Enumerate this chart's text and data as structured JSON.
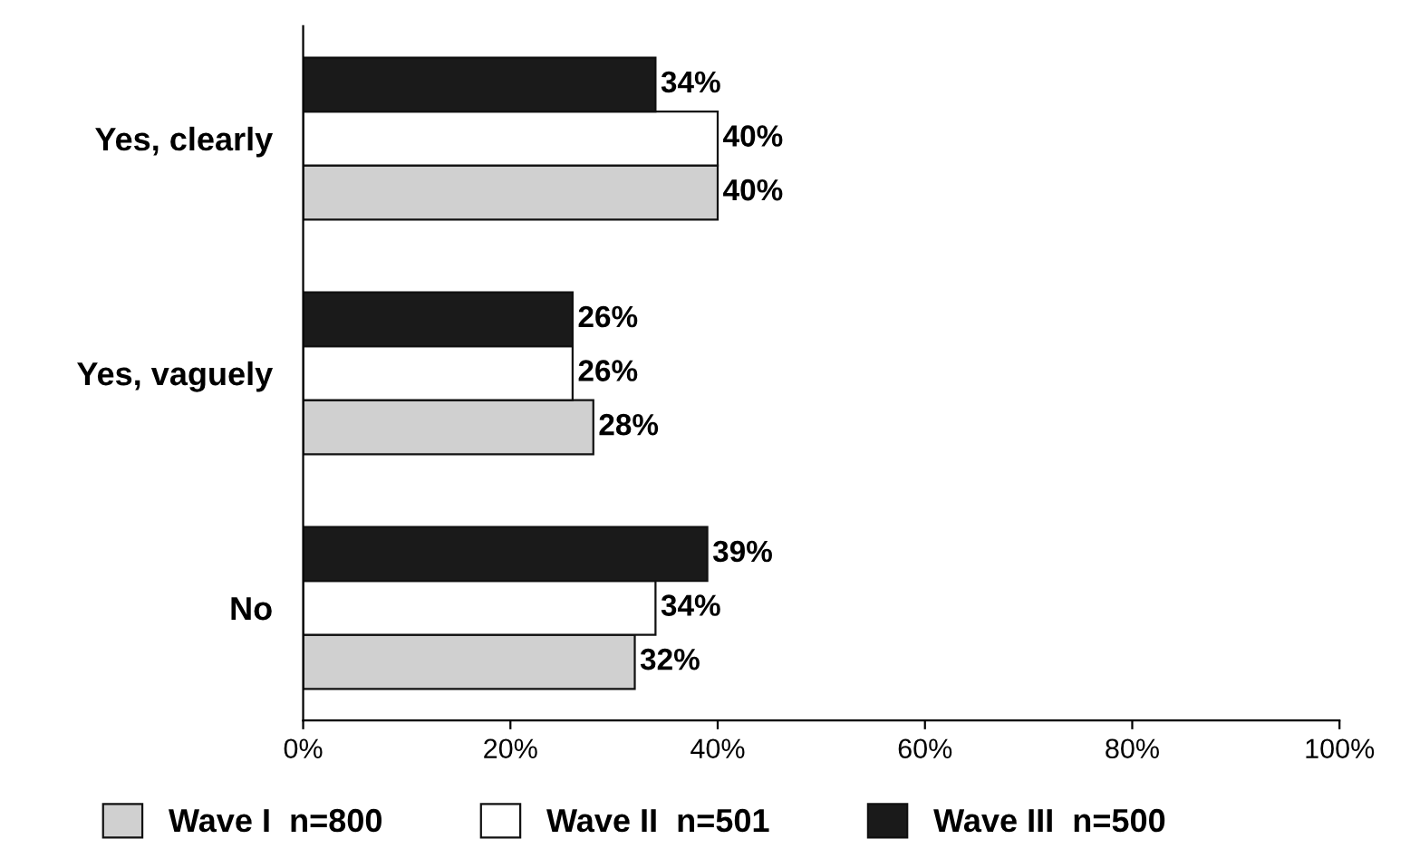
{
  "chart_data": {
    "type": "bar",
    "orientation": "horizontal",
    "categories": [
      "Yes, clearly",
      "Yes, vaguely",
      "No"
    ],
    "series": [
      {
        "name": "Wave I  n=800",
        "color": "#d0d0d0",
        "values": [
          40,
          28,
          32
        ],
        "value_labels": [
          "40%",
          "28%",
          "32%"
        ]
      },
      {
        "name": "Wave II  n=501",
        "color": "#ffffff",
        "values": [
          40,
          26,
          34
        ],
        "value_labels": [
          "40%",
          "26%",
          "34%"
        ]
      },
      {
        "name": "Wave III  n=500",
        "color": "#1a1a1a",
        "values": [
          34,
          26,
          39
        ],
        "value_labels": [
          "34%",
          "26%",
          "39%"
        ]
      }
    ],
    "xlim": [
      0,
      100
    ],
    "xticks": [
      {
        "value": 0,
        "label": "0%"
      },
      {
        "value": 20,
        "label": "20%"
      },
      {
        "value": 40,
        "label": "40%"
      },
      {
        "value": 60,
        "label": "60%"
      },
      {
        "value": 80,
        "label": "80%"
      },
      {
        "value": 100,
        "label": "100%"
      }
    ],
    "grid": false,
    "legend": "bottom"
  }
}
